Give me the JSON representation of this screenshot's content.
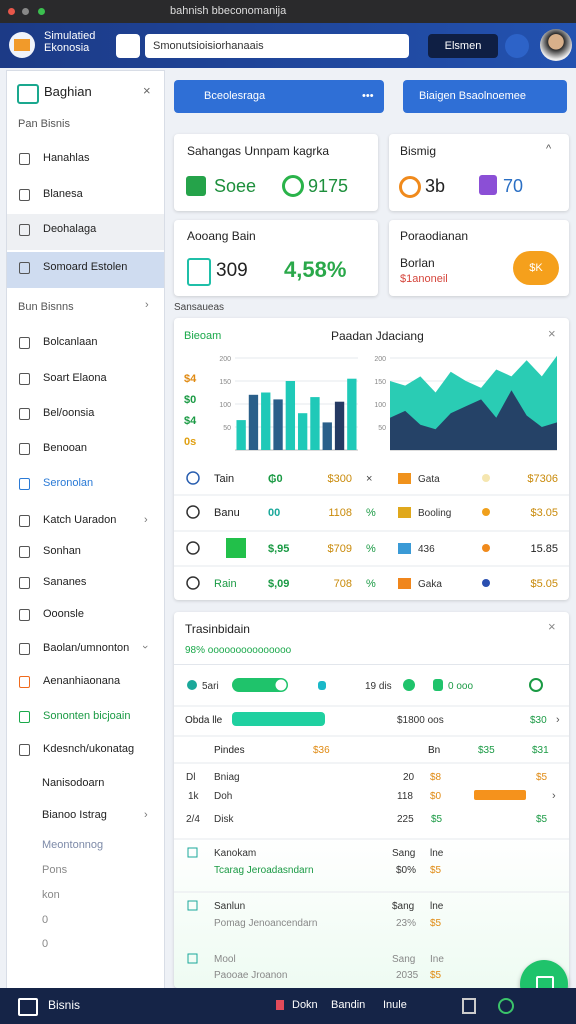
{
  "browser": {
    "url": "bahnish bbeconomanija"
  },
  "header": {
    "title": "Simulatied Ekonosia",
    "search": "Smonutsioisiorhanaais",
    "button": "Elsmen"
  },
  "sidebar": {
    "title": "Baghian",
    "items": [
      "Pan Bisnis",
      "Hanahlas",
      "Blanesa",
      "Deohalaga",
      "Somoard Estolen",
      "Bun Bisnns",
      "Bolcanlaan",
      "Soart Elaona",
      "Bel/oonsia",
      "Benooan",
      "Seronolan",
      "Katch Uaradon",
      "Sonhan",
      "Sananes",
      "Ooonsle",
      "Baolan/umnonton",
      "Aenanhiaonana",
      "Sononten bicjoain",
      "Kdesnch/ukonatag",
      "Nanisodoarn",
      "Bianoo Istrag",
      "Meontonnog",
      "Pons",
      "kon",
      "0",
      "0"
    ]
  },
  "actions": {
    "primary": "Bceolesraga",
    "secondary": "Biaigen Bsaolnoemee"
  },
  "cards": [
    {
      "title": "Sahangas Unnpam kagrka",
      "left": "Soee",
      "right": "9175"
    },
    {
      "title": "Bismig",
      "left": "3b",
      "right": "70"
    },
    {
      "title": "Aooang Bain",
      "left": "309",
      "right": "4,58%"
    },
    {
      "title": "Poraodianan",
      "left": "Borlan",
      "right": "$1anoneil",
      "button": "$K"
    }
  ],
  "section_label": "Sansaueas",
  "chart_panel": {
    "tag": "Bieoam",
    "title": "Paadan Jdaciang",
    "side_labels": [
      "$4",
      "$0",
      "$4",
      "0s"
    ],
    "left_chart": {
      "type": "bar",
      "ylim": [
        0,
        200
      ],
      "yticks": [
        50,
        100,
        150,
        200
      ],
      "values": [
        65,
        120,
        125,
        110,
        150,
        80,
        115,
        60,
        105,
        155
      ]
    },
    "right_chart": {
      "type": "area",
      "ylim": [
        0,
        200
      ],
      "yticks": [
        50,
        100,
        150,
        200
      ],
      "series": [
        {
          "color": "#1fc9b0",
          "values": [
            150,
            140,
            160,
            125,
            170,
            150,
            135,
            175,
            160,
            195,
            160,
            205
          ]
        },
        {
          "color": "#253a63",
          "values": [
            70,
            85,
            55,
            45,
            80,
            95,
            110,
            70,
            130,
            75,
            50,
            60
          ]
        }
      ]
    },
    "rows": [
      {
        "name": "Tain",
        "a": "₲0",
        "b": "$300",
        "sym": "×",
        "label": "Gata",
        "value": "$7306"
      },
      {
        "name": "Banu",
        "a": "00",
        "b": "1108",
        "sym": "%",
        "label": "Booling",
        "value": "$3.05"
      },
      {
        "a": "$,95",
        "b": "$709",
        "sym": "%",
        "label": "436",
        "value": "15.85"
      },
      {
        "name": "Rain",
        "a": "$,09",
        "b": "708",
        "sym": "%",
        "label": "Gaka",
        "value": "$5.05"
      }
    ]
  },
  "tx_panel": {
    "title": "Trasinbidain",
    "subtitle": "98% ooooooooooooooo",
    "rows": [
      [
        "5ari",
        "19 dis",
        "0 ooo"
      ],
      [
        "Obda lle",
        "$1800 oos",
        "$30"
      ],
      [
        "Pindes",
        "$36",
        "Bn",
        "$35",
        "$31"
      ],
      [
        "Dl",
        "Bniag",
        "20",
        "$8",
        "$5"
      ],
      [
        "1k",
        "Doh",
        "118",
        "$0"
      ],
      [
        "2/4",
        "Disk",
        "225",
        "$5",
        "$5"
      ],
      [
        "Kanokam",
        "Sang",
        "lne"
      ],
      [
        "Tcarag Jeroadasndarn",
        "$0%",
        "$5"
      ],
      [
        "Sanlun",
        "$ang",
        "lne"
      ],
      [
        "Pomag Jenoancendarn",
        "23%",
        "$5"
      ],
      [
        "Mool",
        "Sang",
        "Ine"
      ],
      [
        "Paooae Jroanon",
        "2035",
        "$5"
      ]
    ]
  },
  "footer": {
    "brand": "Bisnis",
    "items": [
      "Dokn",
      "Bandin",
      "Inule"
    ]
  }
}
